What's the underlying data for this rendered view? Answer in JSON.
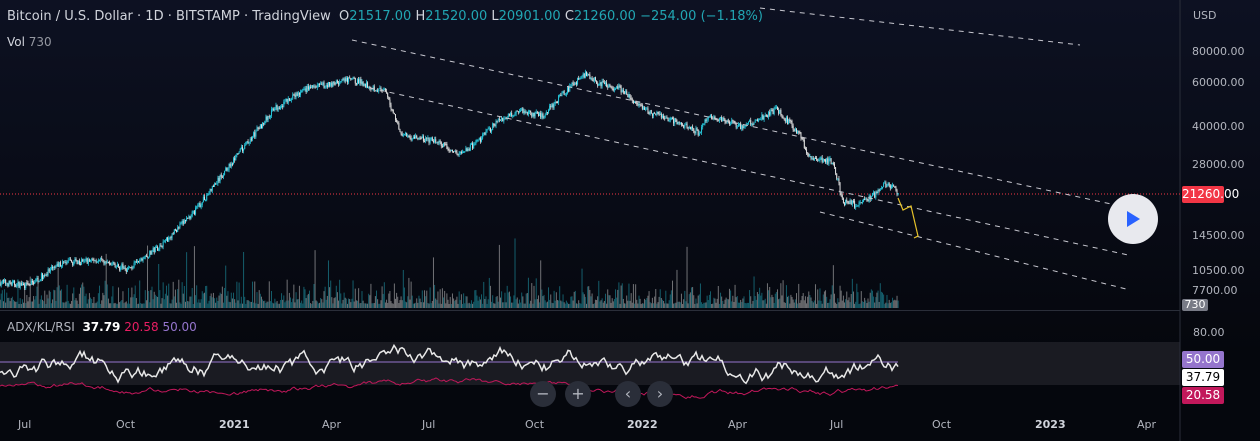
{
  "header": {
    "symbol": "Bitcoin / U.S. Dollar",
    "interval": "1D",
    "exchange": "BITSTAMP",
    "source": "TradingView",
    "o_label": "O",
    "o": "21517.00",
    "h_label": "H",
    "h": "21520.00",
    "l_label": "L",
    "l": "20901.00",
    "c_label": "C",
    "c": "21260.00",
    "change": "−254.00 (−1.18%)"
  },
  "volume": {
    "label": "Vol",
    "value": "730"
  },
  "indicator": {
    "label": "ADX/KL/RSI",
    "adx": "37.79",
    "kl": "20.58",
    "rsi": "50.00"
  },
  "price_axis": {
    "currency": "USD",
    "ticks": [
      "80000.00",
      "60000.00",
      "40000.00",
      "28000.00",
      "14500.00",
      "10500.00",
      "7700.00"
    ],
    "last_price": "21260.00",
    "volume_tag": "730"
  },
  "indicator_axis": {
    "ticks": [
      "80.00"
    ],
    "rsi_tag": "50.00",
    "adx_tag": "37.79",
    "kl_tag": "20.58"
  },
  "time_axis": [
    "Jul",
    "Oct",
    "2021",
    "Apr",
    "Jul",
    "Oct",
    "2022",
    "Apr",
    "Jul",
    "Oct",
    "2023",
    "Apr"
  ],
  "colors": {
    "up": "#26c6da",
    "down": "#e0e0e0",
    "last_price": "#f23645",
    "rsi": "#9575cd",
    "kl": "#e91e63",
    "adx": "#ffffff"
  },
  "price_path": [
    [
      -25,
      9500
    ],
    [
      0,
      9200
    ],
    [
      30,
      11300
    ],
    [
      60,
      11700
    ],
    [
      90,
      10700
    ],
    [
      120,
      13500
    ],
    [
      150,
      18500
    ],
    [
      183,
      29000
    ],
    [
      220,
      47000
    ],
    [
      250,
      57000
    ],
    [
      290,
      62000
    ],
    [
      300,
      60000
    ],
    [
      320,
      55000
    ],
    [
      335,
      37000
    ],
    [
      365,
      35000
    ],
    [
      385,
      31000
    ],
    [
      400,
      34000
    ],
    [
      420,
      42000
    ],
    [
      440,
      47000
    ],
    [
      460,
      44000
    ],
    [
      480,
      55000
    ],
    [
      500,
      66000
    ],
    [
      510,
      60000
    ],
    [
      530,
      57000
    ],
    [
      550,
      47000
    ],
    [
      580,
      42000
    ],
    [
      600,
      38000
    ],
    [
      610,
      44000
    ],
    [
      640,
      40000
    ],
    [
      670,
      47000
    ],
    [
      690,
      38000
    ],
    [
      700,
      30000
    ],
    [
      720,
      29000
    ],
    [
      730,
      20000
    ],
    [
      740,
      19500
    ],
    [
      760,
      21500
    ],
    [
      765,
      23500
    ],
    [
      775,
      23000
    ],
    [
      779,
      21260
    ]
  ],
  "nav": {
    "zoom_out": "−",
    "zoom_in": "+",
    "back": "‹",
    "forward": "›"
  }
}
